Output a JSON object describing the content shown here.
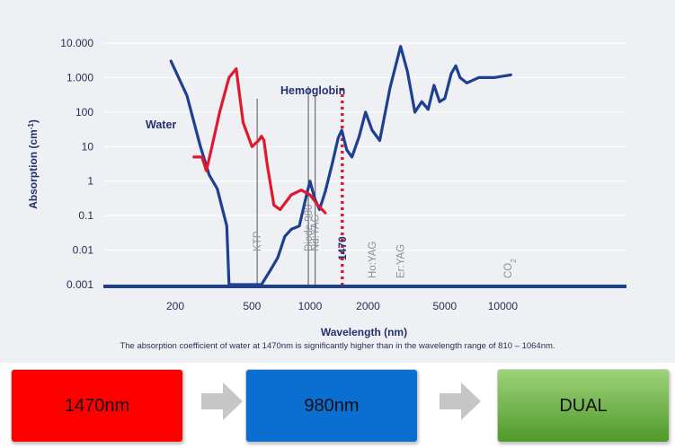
{
  "chart_data": {
    "type": "line",
    "x_scale": "log",
    "y_scale": "log",
    "xlim": [
      150,
      15000
    ],
    "ylim": [
      0.001,
      10000
    ],
    "ylabel": "Absorption (cm",
    "ylabel_sup": "-1",
    "ylabel_end": ")",
    "xlabel": "Wavelength (nm)",
    "x_ticks": [
      200,
      500,
      1000,
      2000,
      5000,
      10000
    ],
    "x_tick_labels": [
      "200",
      "500",
      "1000",
      "2000",
      "5000",
      "10000"
    ],
    "y_ticks": [
      10000,
      1000,
      100,
      10,
      1,
      0.1,
      0.01,
      0.001
    ],
    "y_tick_labels": [
      "10.000",
      "1.000",
      "100",
      "10",
      "1",
      "0.1",
      "0.01",
      "0.001"
    ],
    "series": [
      {
        "name": "Water",
        "color": "#1f3f8f",
        "x": [
          190,
          230,
          270,
          300,
          330,
          370,
          380,
          560,
          620,
          680,
          740,
          800,
          880,
          960,
          1000,
          1060,
          1120,
          1200,
          1300,
          1400,
          1460,
          1550,
          1650,
          1800,
          1940,
          2100,
          2300,
          2600,
          2950,
          3200,
          3500,
          3800,
          4100,
          4400,
          4700,
          5000,
          5400,
          5700,
          6000,
          6500,
          7500,
          9000,
          11000
        ],
        "y": [
          3000,
          300,
          10,
          1.5,
          0.6,
          0.05,
          0.001,
          0.001,
          0.0025,
          0.006,
          0.025,
          0.04,
          0.05,
          0.4,
          1.0,
          0.3,
          0.15,
          0.5,
          3,
          18,
          30,
          8,
          5,
          20,
          100,
          30,
          15,
          500,
          8000,
          1500,
          100,
          200,
          120,
          600,
          200,
          250,
          1300,
          2200,
          1000,
          700,
          1000,
          1000,
          1200
        ]
      },
      {
        "name": "Hemoglobin",
        "color": "#e0192e",
        "x": [
          250,
          275,
          290,
          310,
          340,
          380,
          414,
          450,
          500,
          541,
          560,
          577,
          600,
          650,
          700,
          800,
          900,
          1000,
          1100,
          1200
        ],
        "y": [
          5,
          5,
          2,
          10,
          100,
          1000,
          1800,
          50,
          10,
          15,
          20,
          15,
          3,
          0.2,
          0.15,
          0.4,
          0.55,
          0.4,
          0.2,
          0.12
        ]
      }
    ],
    "laser_lines": [
      {
        "label": "KTP",
        "wavelength": 532
      },
      {
        "label": "Diode 980",
        "wavelength": 980
      },
      {
        "label": "Nd:YAG",
        "wavelength": 1064
      },
      {
        "label": "1470",
        "wavelength": 1470,
        "highlight": true,
        "color": "#e0192e"
      },
      {
        "label": "Ho:YAG",
        "wavelength": 2100
      },
      {
        "label": "Er:YAG",
        "wavelength": 2940
      },
      {
        "label": "CO",
        "label_sub": "2",
        "wavelength": 10600
      }
    ],
    "caption": "The absorption coefficient of water at 1470nm is significantly higher than in the wavelength range of 810 – 1064nm."
  },
  "options": [
    {
      "label": "1470nm"
    },
    {
      "label": "980nm"
    },
    {
      "label": "DUAL"
    }
  ]
}
